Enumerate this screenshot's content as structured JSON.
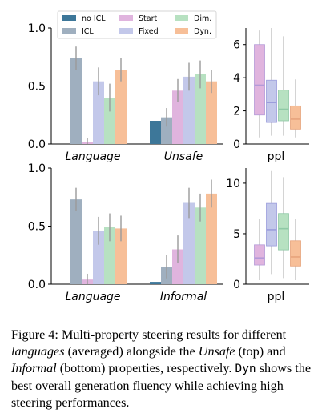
{
  "colors": {
    "no_icl": "#3d7799",
    "icl": "#9fafbf",
    "start": "#e0b4de",
    "fixed": "#c3c8ea",
    "dim": "#b7e1c1",
    "dyn": "#f7bf98",
    "box_median_start": "#b49ad8",
    "box_median_fixed": "#9b9ddc",
    "box_median_dim": "#8fc9a6",
    "box_median_dyn": "#e7a47c"
  },
  "legend": [
    {
      "key": "no_icl",
      "label": "no ICL"
    },
    {
      "key": "icl",
      "label": "ICL"
    },
    {
      "key": "start",
      "label": "Start"
    },
    {
      "key": "fixed",
      "label": "Fixed"
    },
    {
      "key": "dim",
      "label": "Dim."
    },
    {
      "key": "dyn",
      "label": "Dyn."
    }
  ],
  "chart_data": [
    {
      "type": "bar",
      "panel": "top-left",
      "categories": [
        "Language",
        "Unsafe"
      ],
      "series_keys": [
        "no_icl",
        "icl",
        "start",
        "fixed",
        "dim",
        "dyn"
      ],
      "series": [
        {
          "name": "no ICL",
          "values": [
            null,
            0.2
          ],
          "err": [
            null,
            null
          ]
        },
        {
          "name": "ICL",
          "values": [
            0.74,
            0.23
          ],
          "err": [
            0.1,
            0.08
          ]
        },
        {
          "name": "Start",
          "values": [
            0.02,
            0.46
          ],
          "err": [
            0.03,
            0.1
          ]
        },
        {
          "name": "Fixed",
          "values": [
            0.54,
            0.58
          ],
          "err": [
            0.12,
            0.12
          ]
        },
        {
          "name": "Dim.",
          "values": [
            0.4,
            0.6
          ],
          "err": [
            0.12,
            0.12
          ]
        },
        {
          "name": "Dyn.",
          "values": [
            0.64,
            0.54
          ],
          "err": [
            0.1,
            0.1
          ]
        }
      ],
      "ylim": [
        0,
        1.0
      ],
      "yticks": [
        "0.0",
        "0.5",
        "1.0"
      ],
      "legend_position": "top"
    },
    {
      "type": "box",
      "panel": "top-right",
      "xlabel": "ppl",
      "series_keys": [
        "start",
        "fixed",
        "dim",
        "dyn"
      ],
      "boxes": [
        {
          "name": "Start",
          "whisker_low": 0.4,
          "q1": 1.75,
          "median": 3.55,
          "q3": 6.0,
          "whisker_high": 6.85
        },
        {
          "name": "Fixed",
          "whisker_low": 0.5,
          "q1": 1.3,
          "median": 2.5,
          "q3": 3.85,
          "whisker_high": 7.0
        },
        {
          "name": "Dim.",
          "whisker_low": 0.5,
          "q1": 1.4,
          "median": 2.1,
          "q3": 3.25,
          "whisker_high": 6.5
        },
        {
          "name": "Dyn.",
          "whisker_low": 0.4,
          "q1": 0.9,
          "median": 1.5,
          "q3": 2.3,
          "whisker_high": 3.9
        }
      ],
      "ylim": [
        0,
        7
      ],
      "yticks": [
        "0",
        "2",
        "4",
        "6"
      ]
    },
    {
      "type": "bar",
      "panel": "bottom-left",
      "categories": [
        "Language",
        "Informal"
      ],
      "series_keys": [
        "no_icl",
        "icl",
        "start",
        "fixed",
        "dim",
        "dyn"
      ],
      "series": [
        {
          "name": "no ICL",
          "values": [
            null,
            0.02
          ],
          "err": [
            null,
            null
          ]
        },
        {
          "name": "ICL",
          "values": [
            0.73,
            0.15
          ],
          "err": [
            0.1,
            0.1
          ]
        },
        {
          "name": "Start",
          "values": [
            0.04,
            0.3
          ],
          "err": [
            0.05,
            0.12
          ]
        },
        {
          "name": "Fixed",
          "values": [
            0.46,
            0.7
          ],
          "err": [
            0.12,
            0.13
          ]
        },
        {
          "name": "Dim.",
          "values": [
            0.49,
            0.66
          ],
          "err": [
            0.12,
            0.12
          ]
        },
        {
          "name": "Dyn.",
          "values": [
            0.48,
            0.78
          ],
          "err": [
            0.11,
            0.12
          ]
        }
      ],
      "ylim": [
        0,
        1.0
      ],
      "yticks": [
        "0.0",
        "0.5",
        "1.0"
      ]
    },
    {
      "type": "box",
      "panel": "bottom-right",
      "xlabel": "ppl",
      "series_keys": [
        "start",
        "fixed",
        "dim",
        "dyn"
      ],
      "boxes": [
        {
          "name": "Start",
          "whisker_low": 0.4,
          "q1": 1.9,
          "median": 2.6,
          "q3": 3.9,
          "whisker_high": 6.5
        },
        {
          "name": "Fixed",
          "whisker_low": 1.0,
          "q1": 3.8,
          "median": 5.4,
          "q3": 8.0,
          "whisker_high": 11.2
        },
        {
          "name": "Dim.",
          "whisker_low": 0.6,
          "q1": 3.4,
          "median": 5.5,
          "q3": 7.0,
          "whisker_high": 10.6
        },
        {
          "name": "Dyn.",
          "whisker_low": 0.4,
          "q1": 1.8,
          "median": 2.7,
          "q3": 4.3,
          "whisker_high": 6.5
        }
      ],
      "ylim": [
        0,
        11.5
      ],
      "yticks": [
        "0",
        "5",
        "10"
      ]
    }
  ],
  "caption": {
    "p1": "Figure 4: Multi-property steering results for different ",
    "i1": "languages",
    "p2": " (averaged) alongside the ",
    "i2": "Unsafe",
    "p3": " (top) and ",
    "i3": "Informal",
    "p4": " (bottom) properties, respectively. ",
    "code": "Dyn",
    "p5": " shows the best overall generation fluency while achieving high steering performances."
  }
}
